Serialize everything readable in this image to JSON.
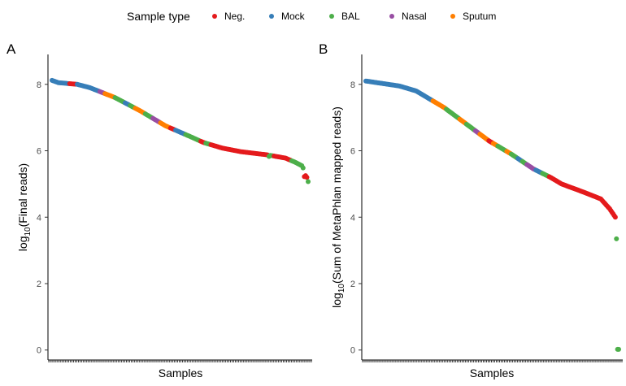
{
  "legend": {
    "title": "Sample type",
    "items": [
      {
        "label": "Neg.",
        "color": "#E41A1C"
      },
      {
        "label": "Mock",
        "color": "#377EB8"
      },
      {
        "label": "BAL",
        "color": "#4DAF4A"
      },
      {
        "label": "Nasal",
        "color": "#984EA3"
      },
      {
        "label": "Sputum",
        "color": "#FF7F00"
      }
    ]
  },
  "chart_data": [
    {
      "type": "scatter",
      "panel": "A",
      "xlabel": "Samples",
      "ylabel": "log10(Final reads)",
      "ylabel_main": "log",
      "ylabel_sub": "10",
      "ylabel_rest": "(Final reads)",
      "ylim": [
        -0.3,
        8.9
      ],
      "yticks": [
        0,
        2,
        4,
        6,
        8
      ],
      "n_samples": 160,
      "profile": [
        [
          0,
          8.12
        ],
        [
          5,
          8.05
        ],
        [
          20,
          8.0
        ],
        [
          30,
          7.9
        ],
        [
          50,
          7.6
        ],
        [
          70,
          7.2
        ],
        [
          90,
          6.75
        ],
        [
          110,
          6.42
        ],
        [
          120,
          6.25
        ],
        [
          135,
          6.08
        ],
        [
          150,
          5.97
        ],
        [
          170,
          5.88
        ],
        [
          185,
          5.78
        ],
        [
          193,
          5.65
        ],
        [
          198,
          5.55
        ],
        [
          201,
          5.35
        ],
        [
          203,
          5.05
        ]
      ],
      "segments": [
        {
          "from": 0,
          "to": 14,
          "type": "Mock"
        },
        {
          "from": 14,
          "to": 20,
          "type": "Neg."
        },
        {
          "from": 20,
          "to": 38,
          "type": "Mock"
        },
        {
          "from": 38,
          "to": 42,
          "type": "Nasal"
        },
        {
          "from": 42,
          "to": 50,
          "type": "Sputum"
        },
        {
          "from": 50,
          "to": 58,
          "type": "BAL"
        },
        {
          "from": 58,
          "to": 62,
          "type": "Mock"
        },
        {
          "from": 62,
          "to": 66,
          "type": "BAL"
        },
        {
          "from": 66,
          "to": 74,
          "type": "Sputum"
        },
        {
          "from": 74,
          "to": 80,
          "type": "BAL"
        },
        {
          "from": 80,
          "to": 86,
          "type": "Nasal"
        },
        {
          "from": 86,
          "to": 94,
          "type": "Sputum"
        },
        {
          "from": 94,
          "to": 98,
          "type": "Neg."
        },
        {
          "from": 98,
          "to": 106,
          "type": "Mock"
        },
        {
          "from": 106,
          "to": 118,
          "type": "BAL"
        },
        {
          "from": 118,
          "to": 122,
          "type": "Neg."
        },
        {
          "from": 122,
          "to": 126,
          "type": "BAL"
        },
        {
          "from": 126,
          "to": 172,
          "type": "Neg."
        },
        {
          "from": 172,
          "to": 176,
          "type": "BAL"
        },
        {
          "from": 176,
          "to": 190,
          "type": "Neg."
        },
        {
          "from": 190,
          "to": 196,
          "type": "BAL"
        },
        {
          "from": 196,
          "to": 202,
          "type": "BAL"
        },
        {
          "from": 202,
          "to": 204,
          "type": "Neg."
        }
      ],
      "overrides": [
        {
          "at": 172,
          "y": 5.83,
          "type": "BAL"
        },
        {
          "at": 200,
          "y": 5.22,
          "type": "Neg."
        },
        {
          "at": 201,
          "y": 5.25,
          "type": "Neg."
        },
        {
          "at": 203,
          "y": 5.07,
          "type": "BAL"
        }
      ]
    },
    {
      "type": "scatter",
      "panel": "B",
      "xlabel": "Samples",
      "ylabel": "log10(Sum of MetaPhlan mapped reads)",
      "ylabel_main": "log",
      "ylabel_sub": "10",
      "ylabel_rest": "(Sum of MetaPhlan mapped reads)",
      "ylim": [
        -0.3,
        8.9
      ],
      "yticks": [
        0,
        2,
        4,
        6,
        8
      ],
      "n_samples": 160,
      "profile": [
        [
          0,
          8.1
        ],
        [
          10,
          8.05
        ],
        [
          30,
          7.95
        ],
        [
          45,
          7.8
        ],
        [
          55,
          7.6
        ],
        [
          70,
          7.3
        ],
        [
          90,
          6.8
        ],
        [
          110,
          6.3
        ],
        [
          130,
          5.9
        ],
        [
          150,
          5.45
        ],
        [
          165,
          5.2
        ],
        [
          175,
          5.0
        ],
        [
          195,
          4.75
        ],
        [
          210,
          4.55
        ],
        [
          218,
          4.25
        ],
        [
          222,
          4.05
        ],
        [
          224,
          3.95
        ]
      ],
      "segments": [
        {
          "from": 0,
          "to": 60,
          "type": "Mock"
        },
        {
          "from": 60,
          "to": 72,
          "type": "Sputum"
        },
        {
          "from": 72,
          "to": 84,
          "type": "BAL"
        },
        {
          "from": 84,
          "to": 90,
          "type": "Sputum"
        },
        {
          "from": 90,
          "to": 98,
          "type": "BAL"
        },
        {
          "from": 98,
          "to": 102,
          "type": "Nasal"
        },
        {
          "from": 102,
          "to": 110,
          "type": "Sputum"
        },
        {
          "from": 110,
          "to": 114,
          "type": "Neg."
        },
        {
          "from": 114,
          "to": 118,
          "type": "Sputum"
        },
        {
          "from": 118,
          "to": 126,
          "type": "BAL"
        },
        {
          "from": 126,
          "to": 130,
          "type": "Sputum"
        },
        {
          "from": 130,
          "to": 136,
          "type": "BAL"
        },
        {
          "from": 136,
          "to": 140,
          "type": "Mock"
        },
        {
          "from": 140,
          "to": 144,
          "type": "BAL"
        },
        {
          "from": 144,
          "to": 152,
          "type": "Nasal"
        },
        {
          "from": 152,
          "to": 158,
          "type": "Mock"
        },
        {
          "from": 158,
          "to": 164,
          "type": "BAL"
        },
        {
          "from": 164,
          "to": 224,
          "type": "Neg."
        }
      ],
      "overrides": [
        {
          "at": 224,
          "y": 3.35,
          "type": "BAL"
        },
        {
          "at": 225,
          "y": 0.02,
          "type": "BAL"
        },
        {
          "at": 226,
          "y": 0.02,
          "type": "BAL"
        }
      ]
    }
  ]
}
